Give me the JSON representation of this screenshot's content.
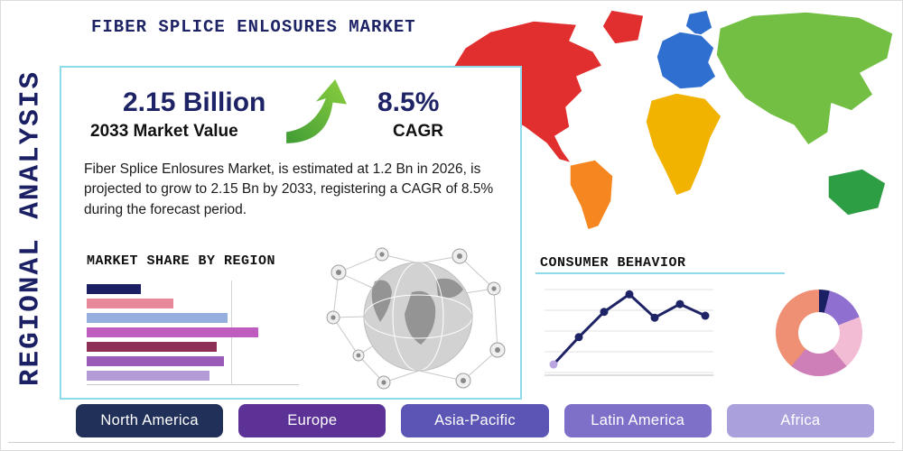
{
  "header": {
    "title": "FIBER SPLICE ENLOSURES MARKET",
    "side_label": "REGIONAL ANALYSIS"
  },
  "stats": {
    "market_value": "2.15 Billion",
    "market_value_caption": "2033 Market Value",
    "cagr_value": "8.5%",
    "cagr_caption": "CAGR",
    "description": "Fiber Splice Enlosures Market, is estimated at 1.2 Bn in 2026, is projected to grow to 2.15 Bn by 2033, registering a CAGR of 8.5% during the forecast period."
  },
  "sections": {
    "market_share_title": "MARKET SHARE BY REGION",
    "consumer_behavior_title": "CONSUMER BEHAVIOR"
  },
  "region_buttons": [
    {
      "label": "North America",
      "color": "#203058"
    },
    {
      "label": "Europe",
      "color": "#5d3296"
    },
    {
      "label": "Asia-Pacific",
      "color": "#5b55b5"
    },
    {
      "label": "Latin America",
      "color": "#7e6fc9"
    },
    {
      "label": "Africa",
      "color": "#a9a0dc"
    }
  ],
  "map": {
    "regions": [
      {
        "name": "north-america",
        "color": "#e12f2f"
      },
      {
        "name": "greenland",
        "color": "#e12f2f"
      },
      {
        "name": "south-america",
        "color": "#f6861f"
      },
      {
        "name": "europe",
        "color": "#2f6fd0"
      },
      {
        "name": "scandinavia",
        "color": "#2f6fd0"
      },
      {
        "name": "africa",
        "color": "#f2b200"
      },
      {
        "name": "asia",
        "color": "#72bf44"
      },
      {
        "name": "australia",
        "color": "#2e9e44"
      }
    ]
  },
  "chart_data": [
    {
      "type": "bar",
      "orientation": "horizontal",
      "title": "MARKET SHARE BY REGION",
      "categories": [
        "",
        "",
        "",
        "",
        "",
        "",
        ""
      ],
      "values": [
        30,
        48,
        78,
        95,
        72,
        76,
        68
      ],
      "unit": "relative length, percent of max (bars unlabeled in source)",
      "colors": [
        "#1b1f63",
        "#e8899b",
        "#94aedd",
        "#bf5cc0",
        "#8e2f55",
        "#9a5ab8",
        "#b49bd8"
      ],
      "grid": true,
      "legend": "none"
    },
    {
      "type": "line",
      "title": "CONSUMER BEHAVIOR",
      "x": [
        1,
        2,
        3,
        4,
        5,
        6,
        7
      ],
      "values": [
        12,
        40,
        66,
        84,
        60,
        74,
        62
      ],
      "ylim": [
        0,
        100
      ],
      "line_color": "#1e2366",
      "first_marker_color": "#b9a6e0",
      "grid": true,
      "legend": "none"
    },
    {
      "type": "pie",
      "subtype": "donut",
      "title": "",
      "segments": [
        {
          "label": "",
          "value": 4,
          "color": "#1b1f63"
        },
        {
          "label": "",
          "value": 15,
          "color": "#8f6fd0"
        },
        {
          "label": "",
          "value": 20,
          "color": "#f2bcd4"
        },
        {
          "label": "",
          "value": 22,
          "color": "#cf7fb7"
        },
        {
          "label": "",
          "value": 39,
          "color": "#ef8f74"
        }
      ],
      "legend": "none"
    }
  ]
}
